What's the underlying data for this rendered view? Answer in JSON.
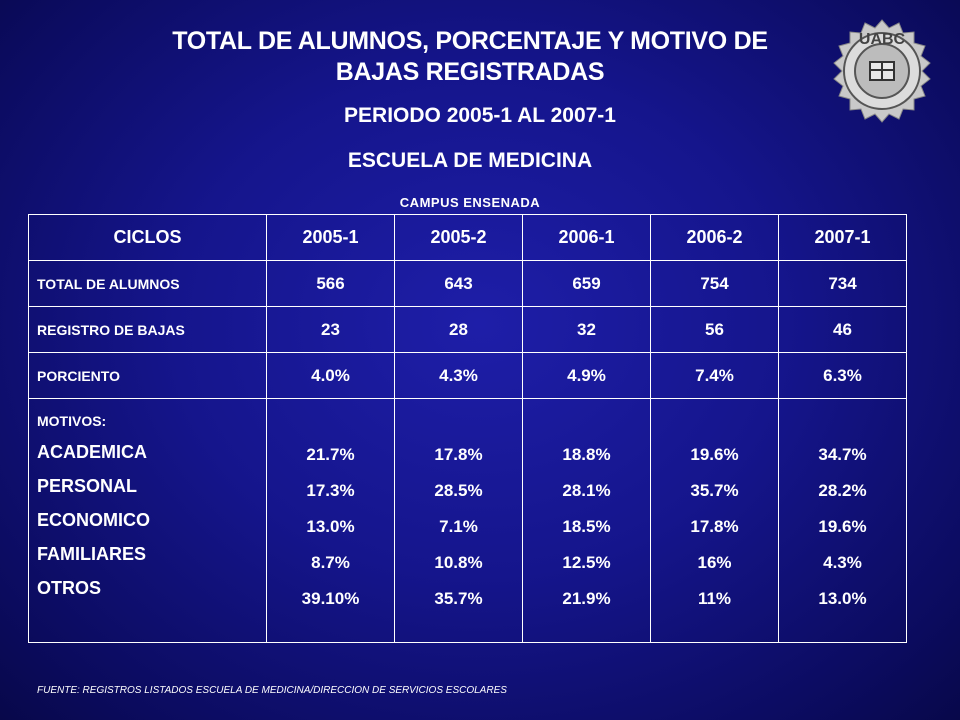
{
  "title": {
    "line1": "TOTAL   DE ALUMNOS, PORCENTAJE Y MOTIVO DE",
    "line2": "BAJAS  REGISTRADAS"
  },
  "period": "PERIODO    2005-1  AL  2007-1",
  "school": "ESCUELA DE MEDICINA",
  "campus": "CAMPUS  ENSENADA",
  "logo": {
    "text": "UABC",
    "icon": "university-seal-icon"
  },
  "table": {
    "header": [
      "CICLOS",
      "2005-1",
      "2005-2",
      "2006-1",
      "2006-2",
      "2007-1"
    ],
    "rows": [
      {
        "label": "TOTAL  DE ALUMNOS",
        "values": [
          "566",
          "643",
          "659",
          "754",
          "734"
        ]
      },
      {
        "label": "REGISTRO DE  BAJAS",
        "values": [
          "23",
          "28",
          "32",
          "56",
          "46"
        ]
      },
      {
        "label": "PORCIENTO",
        "values": [
          "4.0%",
          "4.3%",
          "4.9%",
          "7.4%",
          "6.3%"
        ]
      }
    ],
    "motivos": {
      "title": "MOTIVOS:",
      "labels": [
        "ACADEMICA",
        "PERSONAL",
        "ECONOMICO",
        "FAMILIARES",
        "OTROS"
      ],
      "columns": [
        [
          "21.7%",
          "17.3%",
          "13.0%",
          "8.7%",
          "39.10%"
        ],
        [
          "17.8%",
          "28.5%",
          "7.1%",
          "10.8%",
          "35.7%"
        ],
        [
          "18.8%",
          "28.1%",
          "18.5%",
          "12.5%",
          "21.9%"
        ],
        [
          "19.6%",
          "35.7%",
          "17.8%",
          "16%",
          "11%"
        ],
        [
          "34.7%",
          "28.2%",
          "19.6%",
          "4.3%",
          "13.0%"
        ]
      ]
    }
  },
  "source": "FUENTE: REGISTROS LISTADOS  ESCUELA DE MEDICINA/DIRECCION DE SERVICIOS ESCOLARES"
}
